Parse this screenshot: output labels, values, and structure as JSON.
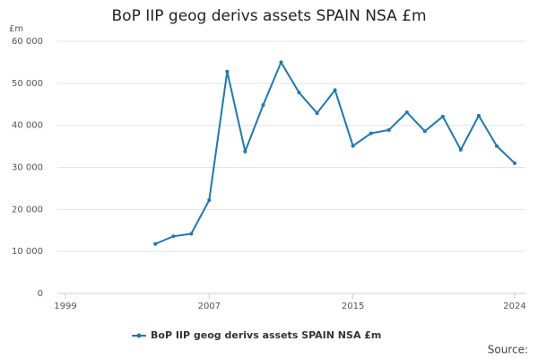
{
  "chart_data": {
    "type": "line",
    "title": "BoP IIP geog derivs assets SPAIN NSA £m",
    "y_unit": "£m",
    "source": "Source:",
    "x": [
      2004,
      2005,
      2006,
      2007,
      2008,
      2009,
      2010,
      2011,
      2012,
      2013,
      2014,
      2015,
      2016,
      2017,
      2018,
      2019,
      2020,
      2021,
      2022,
      2023,
      2024
    ],
    "series": [
      {
        "name": "BoP IIP geog derivs assets SPAIN NSA £m",
        "color": "#1a7ab5",
        "values": [
          11800,
          13600,
          14200,
          22200,
          52800,
          33800,
          44800,
          55000,
          47800,
          42900,
          48400,
          35100,
          38100,
          38900,
          43100,
          38600,
          42100,
          34200,
          42300,
          35100,
          31000
        ]
      }
    ],
    "xlim": [
      1999,
      2024
    ],
    "xticks": [
      1999,
      2007,
      2015,
      2024
    ],
    "ylim": [
      0,
      60000
    ],
    "yticks": [
      0,
      {
        "value": 10000,
        "label": "10 000"
      },
      {
        "value": 20000,
        "label": "20 000"
      },
      {
        "value": 30000,
        "label": "30 000"
      },
      {
        "value": 40000,
        "label": "40 000"
      },
      {
        "value": 50000,
        "label": "50 000"
      },
      {
        "value": 60000,
        "label": "60 000"
      }
    ],
    "grid": true
  }
}
